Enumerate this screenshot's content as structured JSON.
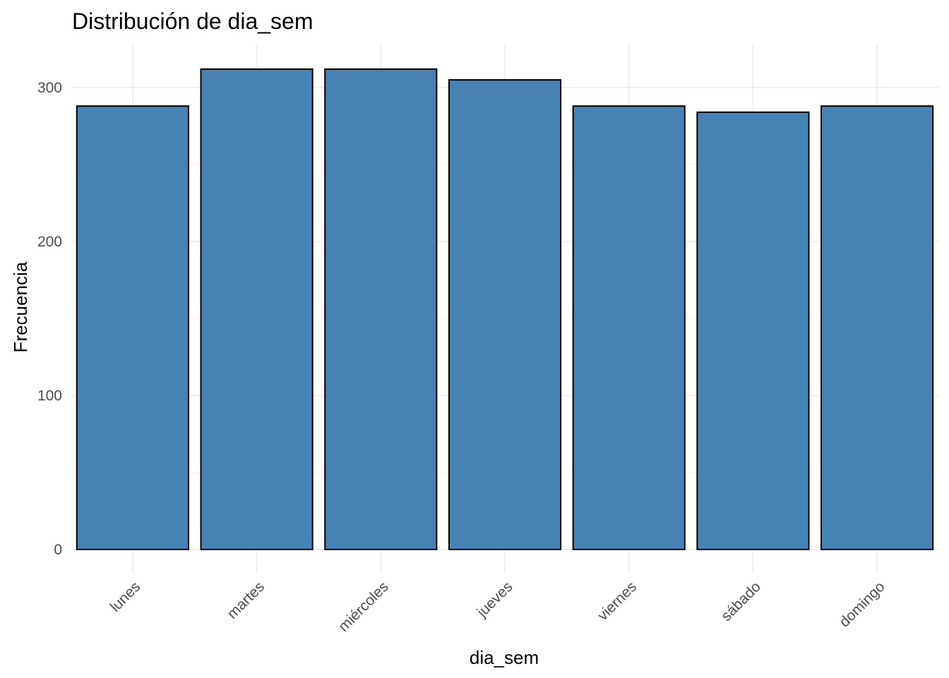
{
  "chart_data": {
    "type": "bar",
    "title": "Distribución de dia_sem",
    "xlabel": "dia_sem",
    "ylabel": "Frecuencia",
    "categories": [
      "lunes",
      "martes",
      "miércoles",
      "jueves",
      "viernes",
      "sábado",
      "domingo"
    ],
    "values": [
      288,
      312,
      312,
      305,
      288,
      284,
      288
    ],
    "y_ticks": [
      0,
      100,
      200,
      300
    ],
    "ylim": [
      0,
      325
    ],
    "grid": true,
    "legend": "none",
    "colors": {
      "bar_fill": "#4682B4",
      "bar_outline": "#000000"
    }
  }
}
